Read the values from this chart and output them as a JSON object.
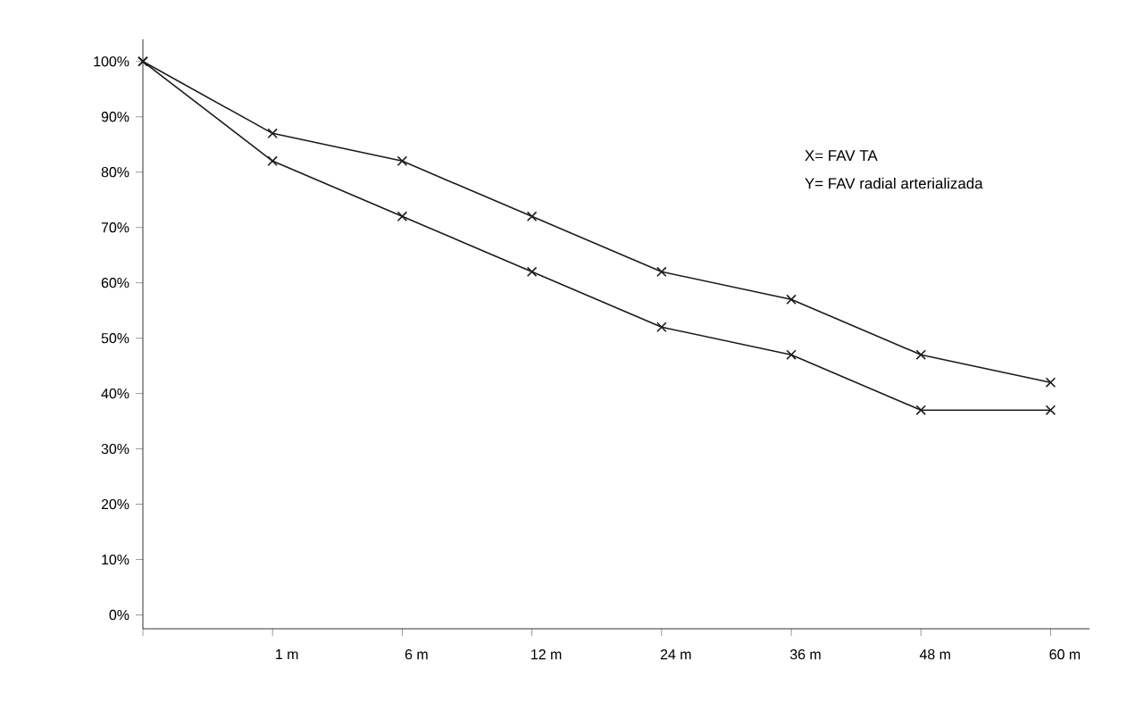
{
  "chart_data": {
    "type": "line",
    "categories": [
      null,
      "1 m",
      "6 m",
      "12 m",
      "24 m",
      "36 m",
      "48 m",
      "60 m"
    ],
    "series": [
      {
        "color": "#1a1a1a",
        "values": [
          100,
          87,
          82,
          72,
          62,
          57,
          47,
          42
        ]
      },
      {
        "color": "#1a1a1a",
        "values": [
          100,
          82,
          72,
          62,
          52,
          47,
          37,
          37
        ]
      }
    ],
    "ylim": [
      -2.5,
      104
    ],
    "yticks": [
      {
        "value": 0,
        "label": "0%"
      },
      {
        "value": 10,
        "label": "10%"
      },
      {
        "value": 20,
        "label": "20%"
      },
      {
        "value": 30,
        "label": "30%"
      },
      {
        "value": 40,
        "label": "40%"
      },
      {
        "value": 50,
        "label": "50%"
      },
      {
        "value": 60,
        "label": "60%"
      },
      {
        "value": 70,
        "label": "70%"
      },
      {
        "value": 80,
        "label": "80%"
      },
      {
        "value": 90,
        "label": "90%"
      },
      {
        "value": 100,
        "label": "100%"
      }
    ],
    "annotations": [
      "X= FAV TA",
      "Y= FAV radial arterializada"
    ],
    "marker": "cross",
    "line_style": "solid",
    "grid": false
  }
}
